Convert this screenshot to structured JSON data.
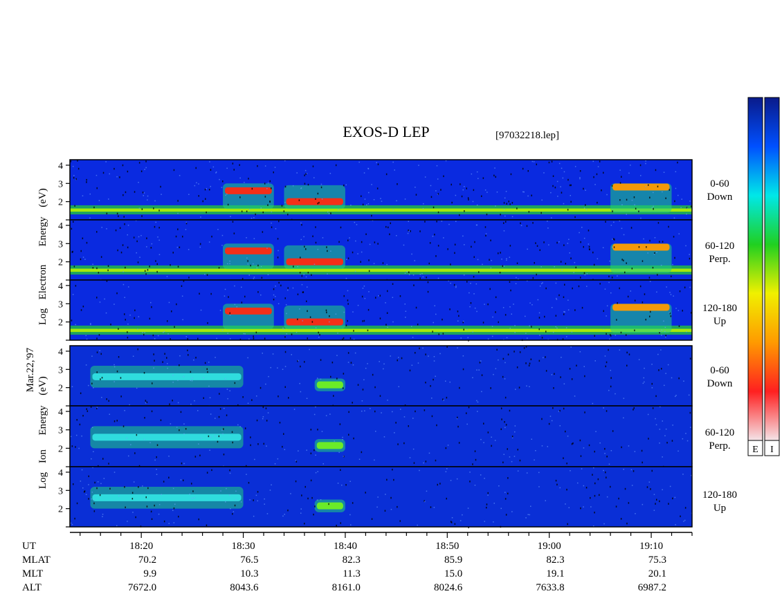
{
  "title": "EXOS-D LEP",
  "file_label": "[97032218.lep]",
  "date_label": "Mar.22,'97",
  "colorbar_labels": [
    "E",
    "I"
  ],
  "colorbar_stops": [
    "#f4e4e8",
    "#ff2020",
    "#ff9a00",
    "#f0f000",
    "#20d020",
    "#00e8e8",
    "#0050ff",
    "#0a1a8a"
  ],
  "spectrogram_colors": {
    "background_electron": "#0a2ae0",
    "background_ion": "#0a2fd6",
    "dots": "#000000"
  },
  "chart_data": {
    "type": "heatmap",
    "x_unit": "UT",
    "xlim": [
      "18:13",
      "19:14"
    ],
    "xticks": [
      "18:20",
      "18:30",
      "18:40",
      "18:50",
      "19:00",
      "19:10"
    ],
    "y_ticks": [
      "1",
      "2",
      "3",
      "4"
    ],
    "y_scale": "log energy (eV)",
    "groups": [
      {
        "name": "Electron",
        "ylabel_words": [
          "Log",
          "Electron",
          "Energy",
          "(eV)"
        ],
        "panels": [
          {
            "pitch_angle": "0-60",
            "direction": "Down"
          },
          {
            "pitch_angle": "60-120",
            "direction": "Perp."
          },
          {
            "pitch_angle": "120-180",
            "direction": "Up"
          }
        ]
      },
      {
        "name": "Ion",
        "ylabel_words": [
          "Log",
          "Ion",
          "Energy",
          "(eV)"
        ],
        "panels": [
          {
            "pitch_angle": "0-60",
            "direction": "Down"
          },
          {
            "pitch_angle": "60-120",
            "direction": "Perp."
          },
          {
            "pitch_angle": "120-180",
            "direction": "Up"
          }
        ]
      }
    ],
    "ephemeris_table": {
      "row_labels": [
        "UT",
        "MLAT",
        "MLT",
        "ALT"
      ],
      "columns": [
        {
          "UT": "18:20",
          "MLAT": "70.2",
          "MLT": "9.9",
          "ALT": "7672.0"
        },
        {
          "UT": "18:30",
          "MLAT": "76.5",
          "MLT": "10.3",
          "ALT": "8043.6"
        },
        {
          "UT": "18:40",
          "MLAT": "82.3",
          "MLT": "11.3",
          "ALT": "8161.0"
        },
        {
          "UT": "18:50",
          "MLAT": "85.9",
          "MLT": "15.0",
          "ALT": "8024.6"
        },
        {
          "UT": "19:00",
          "MLAT": "82.3",
          "MLT": "19.1",
          "ALT": "7633.8"
        },
        {
          "UT": "19:10",
          "MLAT": "75.3",
          "MLT": "20.1",
          "ALT": "6987.2"
        }
      ]
    },
    "features": [
      {
        "group": "Electron",
        "type": "low-energy band",
        "ut": [
          "18:13",
          "19:14"
        ],
        "log_energy": [
          1.3,
          1.8
        ],
        "color": "yellow-green"
      },
      {
        "group": "Electron",
        "type": "intense burst",
        "ut": [
          "18:28",
          "18:33"
        ],
        "log_energy": [
          1.6,
          3.0
        ],
        "peak_log_energy": 2.6,
        "color": "red"
      },
      {
        "group": "Electron",
        "type": "intense burst",
        "ut": [
          "18:34",
          "18:40"
        ],
        "log_energy": [
          1.6,
          2.9
        ],
        "peak_log_energy": 2.0,
        "color": "red"
      },
      {
        "group": "Electron",
        "type": "burst",
        "ut": [
          "19:06",
          "19:12"
        ],
        "log_energy": [
          1.4,
          3.0
        ],
        "peak_log_energy": 2.8,
        "color": "orange"
      },
      {
        "group": "Ion",
        "type": "dispersed band",
        "ut": [
          "18:15",
          "18:30"
        ],
        "log_energy": [
          2.0,
          3.2
        ],
        "color": "cyan"
      },
      {
        "group": "Ion",
        "type": "intense burst",
        "ut": [
          "18:37",
          "18:40"
        ],
        "log_energy": [
          1.8,
          2.5
        ],
        "color": "green-yellow"
      }
    ]
  }
}
